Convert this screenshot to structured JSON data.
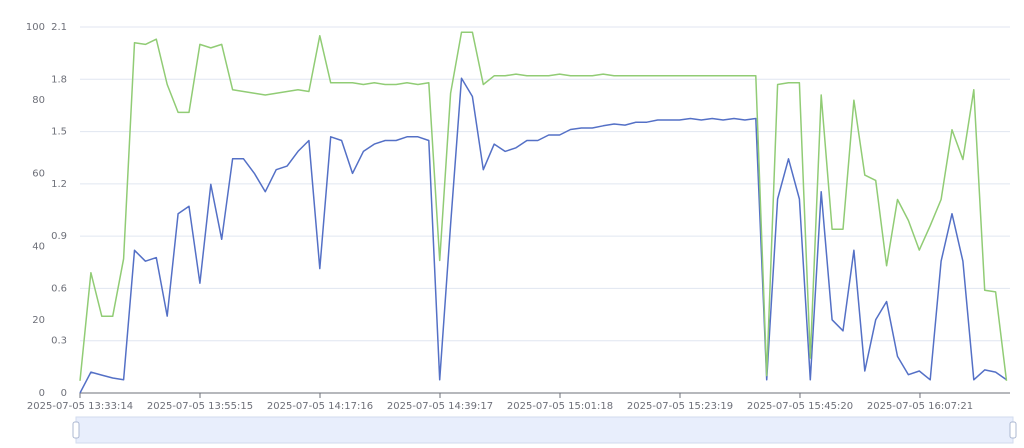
{
  "chart_data": {
    "type": "line",
    "x": [
      "2025-07-05 13:33:14",
      "2025-07-05 13:35:14",
      "2025-07-05 13:37:14",
      "2025-07-05 13:39:14",
      "2025-07-05 13:41:14",
      "2025-07-05 13:43:14",
      "2025-07-05 13:45:14",
      "2025-07-05 13:47:14",
      "2025-07-05 13:49:14",
      "2025-07-05 13:51:14",
      "2025-07-05 13:53:14",
      "2025-07-05 13:55:14",
      "2025-07-05 13:57:14",
      "2025-07-05 13:59:14",
      "2025-07-05 14:01:14",
      "2025-07-05 14:03:14",
      "2025-07-05 14:05:14",
      "2025-07-05 14:07:14",
      "2025-07-05 14:09:14",
      "2025-07-05 14:11:14",
      "2025-07-05 14:13:14",
      "2025-07-05 14:15:14",
      "2025-07-05 14:17:14",
      "2025-07-05 14:19:14",
      "2025-07-05 14:21:14",
      "2025-07-05 14:23:14",
      "2025-07-05 14:25:14",
      "2025-07-05 14:27:14",
      "2025-07-05 14:29:14",
      "2025-07-05 14:31:14",
      "2025-07-05 14:33:14",
      "2025-07-05 14:35:14",
      "2025-07-05 14:37:14",
      "2025-07-05 14:39:14",
      "2025-07-05 14:41:14",
      "2025-07-05 14:43:14",
      "2025-07-05 14:45:14",
      "2025-07-05 14:47:14",
      "2025-07-05 14:49:14",
      "2025-07-05 14:51:14",
      "2025-07-05 14:53:14",
      "2025-07-05 14:55:14",
      "2025-07-05 14:57:14",
      "2025-07-05 14:59:14",
      "2025-07-05 15:01:14",
      "2025-07-05 15:03:14",
      "2025-07-05 15:05:14",
      "2025-07-05 15:07:14",
      "2025-07-05 15:09:14",
      "2025-07-05 15:11:14",
      "2025-07-05 15:13:14",
      "2025-07-05 15:15:14",
      "2025-07-05 15:17:14",
      "2025-07-05 15:19:14",
      "2025-07-05 15:21:14",
      "2025-07-05 15:23:14",
      "2025-07-05 15:25:14",
      "2025-07-05 15:27:14",
      "2025-07-05 15:29:14",
      "2025-07-05 15:31:14",
      "2025-07-05 15:33:14",
      "2025-07-05 15:35:14",
      "2025-07-05 15:37:14",
      "2025-07-05 15:39:14",
      "2025-07-05 15:41:14",
      "2025-07-05 15:43:14",
      "2025-07-05 15:45:14",
      "2025-07-05 15:47:14",
      "2025-07-05 15:49:14",
      "2025-07-05 15:51:14",
      "2025-07-05 15:53:14",
      "2025-07-05 15:55:14",
      "2025-07-05 15:57:14",
      "2025-07-05 15:59:14",
      "2025-07-05 16:01:14",
      "2025-07-05 16:03:14",
      "2025-07-05 16:05:14",
      "2025-07-05 16:07:14",
      "2025-07-05 16:09:14",
      "2025-07-05 16:11:14",
      "2025-07-05 16:13:14",
      "2025-07-05 16:15:14",
      "2025-07-05 16:17:14",
      "2025-07-05 16:19:14",
      "2025-07-05 16:21:14",
      "2025-07-05 16:23:14"
    ],
    "series": [
      {
        "color": "#5470c6",
        "values": [
          0,
          5.7,
          4.9,
          4.1,
          3.6,
          39,
          36,
          37,
          21,
          49,
          51,
          30,
          57,
          42,
          64,
          64,
          60,
          55,
          61,
          62,
          66,
          69,
          34,
          70,
          69,
          60,
          66,
          68,
          69,
          69,
          70,
          70,
          69,
          3.6,
          46,
          86,
          81,
          61,
          68,
          66,
          67,
          69,
          69,
          70.5,
          70.5,
          72,
          72.4,
          72.4,
          73,
          73.5,
          73.2,
          74,
          74,
          74.6,
          74.6,
          74.6,
          75,
          74.6,
          75,
          74.6,
          75,
          74.6,
          75,
          3.6,
          53,
          64,
          53,
          3.6,
          55,
          20,
          17,
          39,
          6,
          20,
          25,
          10,
          5,
          6,
          3.6,
          36,
          49,
          36,
          3.6,
          6.3,
          5.7,
          3.6
        ]
      },
      {
        "color": "#91cc75",
        "axis": "y2",
        "values": [
          0.07,
          0.69,
          0.44,
          0.44,
          0.77,
          2.01,
          2.0,
          2.03,
          1.77,
          1.61,
          1.61,
          2.0,
          1.98,
          2.0,
          1.74,
          1.73,
          1.72,
          1.71,
          1.72,
          1.73,
          1.74,
          1.73,
          2.05,
          1.78,
          1.78,
          1.78,
          1.77,
          1.78,
          1.77,
          1.77,
          1.78,
          1.77,
          1.78,
          0.76,
          1.72,
          2.07,
          2.07,
          1.77,
          1.82,
          1.82,
          1.83,
          1.82,
          1.82,
          1.82,
          1.83,
          1.82,
          1.82,
          1.82,
          1.83,
          1.82,
          1.82,
          1.82,
          1.82,
          1.82,
          1.82,
          1.82,
          1.82,
          1.82,
          1.82,
          1.82,
          1.82,
          1.82,
          1.82,
          0.1,
          1.77,
          1.78,
          1.78,
          0.2,
          1.71,
          0.94,
          0.94,
          1.68,
          1.25,
          1.22,
          0.73,
          1.11,
          0.99,
          0.82,
          0.96,
          1.11,
          1.51,
          1.34,
          1.74,
          0.59,
          0.58,
          0.07
        ]
      }
    ],
    "xlim": [
      "2025-07-05 13:33:14",
      "2025-07-05 16:23:52"
    ],
    "xticks": [
      "2025-07-05 13:33:14",
      "2025-07-05 13:55:15",
      "2025-07-05 14:17:16",
      "2025-07-05 14:39:17",
      "2025-07-05 15:01:18",
      "2025-07-05 15:23:19",
      "2025-07-05 15:45:20",
      "2025-07-05 16:07:21"
    ],
    "ylim": [
      0,
      100
    ],
    "yticks": [
      0,
      20,
      40,
      60,
      80,
      100
    ],
    "y2lim": [
      0,
      2.1
    ],
    "y2ticks": [
      0,
      0.3,
      0.6,
      0.9,
      1.2,
      1.5,
      1.8,
      2.1
    ],
    "grid": true
  }
}
